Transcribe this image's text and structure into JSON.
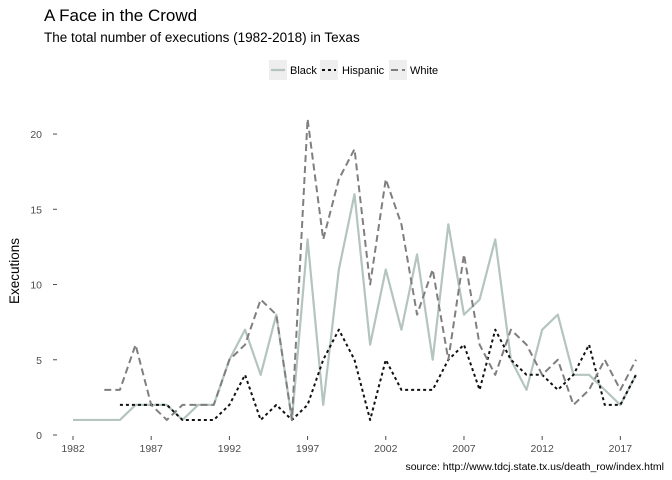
{
  "chart_data": {
    "type": "line",
    "title": "A Face in the Crowd",
    "subtitle": "The total number of executions (1982-2018) in Texas",
    "xlabel": "",
    "ylabel": "Executions",
    "caption": "source: http://www.tdcj.state.tx.us/death_row/index.html",
    "xlim": [
      1982,
      2018
    ],
    "ylim": [
      0,
      21
    ],
    "x_ticks": [
      1982,
      1987,
      1992,
      1997,
      2002,
      2007,
      2012,
      2017
    ],
    "y_ticks": [
      0,
      5,
      10,
      15,
      20
    ],
    "grid": false,
    "legend_position": "top",
    "series": [
      {
        "name": "Black",
        "color": "#b4c4c0",
        "dash": "solid",
        "points": [
          [
            1982,
            1
          ],
          [
            1983,
            1
          ],
          [
            1984,
            1
          ],
          [
            1985,
            1
          ],
          [
            1986,
            2
          ],
          [
            1987,
            2
          ],
          [
            1988,
            2
          ],
          [
            1989,
            1
          ],
          [
            1990,
            2
          ],
          [
            1991,
            2
          ],
          [
            1992,
            5
          ],
          [
            1993,
            7
          ],
          [
            1994,
            4
          ],
          [
            1995,
            8
          ],
          [
            1996,
            1
          ],
          [
            1997,
            13
          ],
          [
            1998,
            2
          ],
          [
            1999,
            11
          ],
          [
            2000,
            16
          ],
          [
            2001,
            6
          ],
          [
            2002,
            11
          ],
          [
            2003,
            7
          ],
          [
            2004,
            12
          ],
          [
            2005,
            5
          ],
          [
            2006,
            14
          ],
          [
            2007,
            8
          ],
          [
            2008,
            9
          ],
          [
            2009,
            13
          ],
          [
            2010,
            5
          ],
          [
            2011,
            3
          ],
          [
            2012,
            7
          ],
          [
            2013,
            8
          ],
          [
            2014,
            4
          ],
          [
            2015,
            4
          ],
          [
            2016,
            3
          ],
          [
            2017,
            2
          ],
          [
            2018,
            4
          ]
        ]
      },
      {
        "name": "Hispanic",
        "color": "#111111",
        "dash": "dotted",
        "points": [
          [
            1985,
            2
          ],
          [
            1986,
            2
          ],
          [
            1987,
            2
          ],
          [
            1988,
            2
          ],
          [
            1989,
            1
          ],
          [
            1990,
            1
          ],
          [
            1991,
            1
          ],
          [
            1992,
            2
          ],
          [
            1993,
            4
          ],
          [
            1994,
            1
          ],
          [
            1995,
            2
          ],
          [
            1996,
            1
          ],
          [
            1997,
            2
          ],
          [
            1998,
            5
          ],
          [
            1999,
            7
          ],
          [
            2000,
            5
          ],
          [
            2001,
            1
          ],
          [
            2002,
            5
          ],
          [
            2003,
            3
          ],
          [
            2004,
            3
          ],
          [
            2005,
            3
          ],
          [
            2006,
            5
          ],
          [
            2007,
            6
          ],
          [
            2008,
            3
          ],
          [
            2009,
            7
          ],
          [
            2010,
            5
          ],
          [
            2011,
            4
          ],
          [
            2012,
            4
          ],
          [
            2013,
            3
          ],
          [
            2014,
            4
          ],
          [
            2015,
            6
          ],
          [
            2016,
            2
          ],
          [
            2017,
            2
          ],
          [
            2018,
            4
          ]
        ]
      },
      {
        "name": "White",
        "color": "#7f7f7f",
        "dash": "dashed",
        "points": [
          [
            1984,
            3
          ],
          [
            1985,
            3
          ],
          [
            1986,
            6
          ],
          [
            1987,
            2
          ],
          [
            1988,
            1
          ],
          [
            1989,
            2
          ],
          [
            1990,
            2
          ],
          [
            1991,
            2
          ],
          [
            1992,
            5
          ],
          [
            1993,
            6
          ],
          [
            1994,
            9
          ],
          [
            1995,
            8
          ],
          [
            1996,
            1
          ],
          [
            1997,
            21
          ],
          [
            1998,
            13
          ],
          [
            1999,
            17
          ],
          [
            2000,
            19
          ],
          [
            2001,
            10
          ],
          [
            2002,
            17
          ],
          [
            2003,
            14
          ],
          [
            2004,
            8
          ],
          [
            2005,
            11
          ],
          [
            2006,
            5
          ],
          [
            2007,
            12
          ],
          [
            2008,
            6
          ],
          [
            2009,
            4
          ],
          [
            2010,
            7
          ],
          [
            2011,
            6
          ],
          [
            2012,
            4
          ],
          [
            2013,
            5
          ],
          [
            2014,
            2
          ],
          [
            2015,
            3
          ],
          [
            2016,
            5
          ],
          [
            2017,
            3
          ],
          [
            2018,
            5
          ]
        ]
      }
    ]
  }
}
